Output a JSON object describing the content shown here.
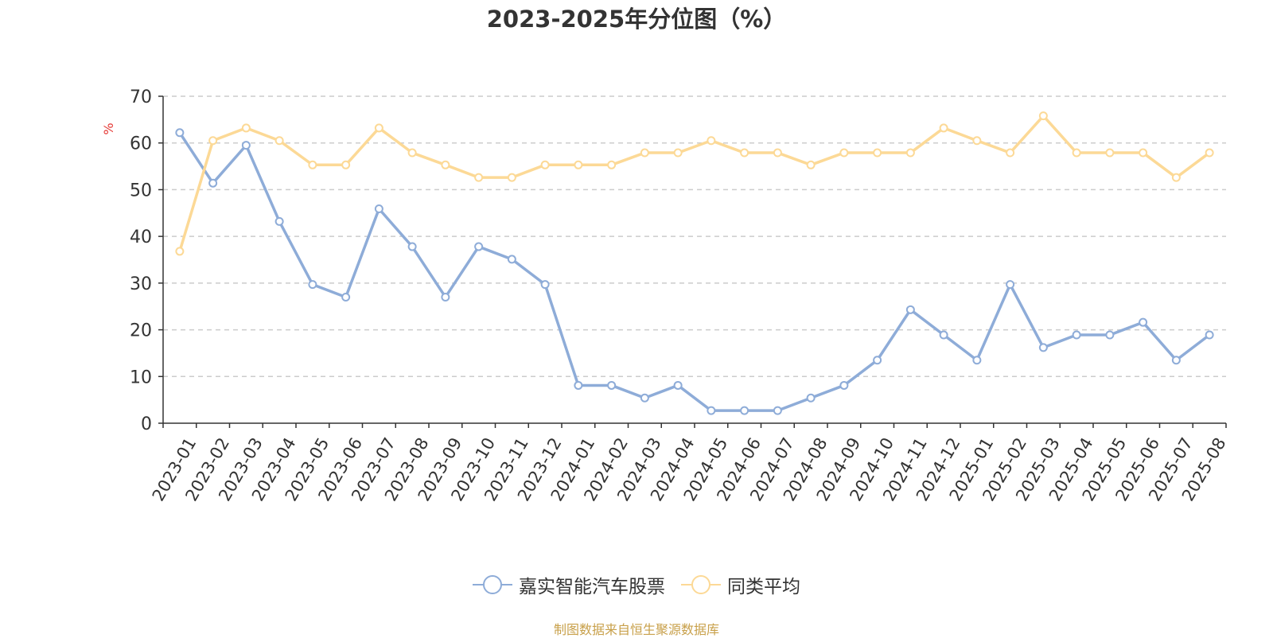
{
  "chart_data": {
    "type": "line",
    "title": "2023-2025年分位图（%）",
    "ylabel": "%",
    "ylim": [
      0,
      70
    ],
    "yticks": [
      0,
      10,
      20,
      30,
      40,
      50,
      60,
      70
    ],
    "grid": true,
    "legend_position": "bottom",
    "categories": [
      "2023-01",
      "2023-02",
      "2023-03",
      "2023-04",
      "2023-05",
      "2023-06",
      "2023-07",
      "2023-08",
      "2023-09",
      "2023-10",
      "2023-11",
      "2023-12",
      "2024-01",
      "2024-02",
      "2024-03",
      "2024-04",
      "2024-05",
      "2024-06",
      "2024-07",
      "2024-08",
      "2024-09",
      "2024-10",
      "2024-11",
      "2024-12",
      "2025-01",
      "2025-02",
      "2025-03",
      "2025-04",
      "2025-05",
      "2025-06",
      "2025-07",
      "2025-08"
    ],
    "series": [
      {
        "name": "嘉实智能汽车股票",
        "color": "#8eacd8",
        "values": [
          62.2,
          51.4,
          59.5,
          43.2,
          29.7,
          27.0,
          45.9,
          37.8,
          27.0,
          37.8,
          35.1,
          29.7,
          8.1,
          8.1,
          5.4,
          8.1,
          2.7,
          2.7,
          2.7,
          5.4,
          8.1,
          13.5,
          24.3,
          18.9,
          13.5,
          29.7,
          16.2,
          18.9,
          18.9,
          21.6,
          13.5,
          18.9
        ]
      },
      {
        "name": "同类平均",
        "color": "#fcd996",
        "values": [
          36.8,
          60.5,
          63.2,
          60.5,
          55.3,
          55.3,
          63.2,
          57.9,
          55.3,
          52.6,
          52.6,
          55.3,
          55.3,
          55.3,
          57.9,
          57.9,
          60.5,
          57.9,
          57.9,
          55.3,
          57.9,
          57.9,
          57.9,
          63.2,
          60.5,
          57.9,
          65.8,
          57.9,
          57.9,
          57.9,
          52.6,
          57.9
        ]
      }
    ]
  },
  "source_text": "制图数据来自恒生聚源数据库",
  "colors": {
    "axis": "#333333",
    "grid": "#cccccc",
    "ylabel": "#e53935",
    "source": "#c8a04a"
  }
}
